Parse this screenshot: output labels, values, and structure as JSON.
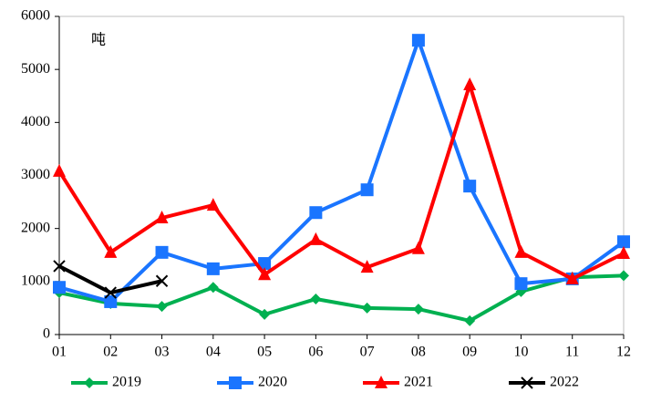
{
  "chart_data": {
    "type": "line",
    "annotation": "吨",
    "categories": [
      "01",
      "02",
      "03",
      "04",
      "05",
      "06",
      "07",
      "08",
      "09",
      "10",
      "11",
      "12"
    ],
    "series": [
      {
        "name": "2019",
        "color": "#00b050",
        "marker": "diamond",
        "values": [
          790,
          585,
          530,
          890,
          380,
          670,
          500,
          480,
          260,
          810,
          1080,
          1110
        ]
      },
      {
        "name": "2020",
        "color": "#1a75ff",
        "marker": "square",
        "values": [
          890,
          620,
          1550,
          1240,
          1340,
          2300,
          2730,
          5550,
          2800,
          960,
          1050,
          1750
        ]
      },
      {
        "name": "2021",
        "color": "#ff0000",
        "marker": "triangle",
        "values": [
          3080,
          1550,
          2200,
          2440,
          1130,
          1790,
          1270,
          1620,
          4710,
          1550,
          1050,
          1530
        ]
      },
      {
        "name": "2022",
        "color": "#000000",
        "marker": "x",
        "values": [
          1290,
          790,
          1010,
          null,
          null,
          null,
          null,
          null,
          null,
          null,
          null,
          null
        ]
      }
    ],
    "ylim": [
      0,
      6000
    ],
    "yticks": [
      0,
      1000,
      2000,
      3000,
      4000,
      5000,
      6000
    ],
    "grid": false,
    "legend": "bottom"
  }
}
